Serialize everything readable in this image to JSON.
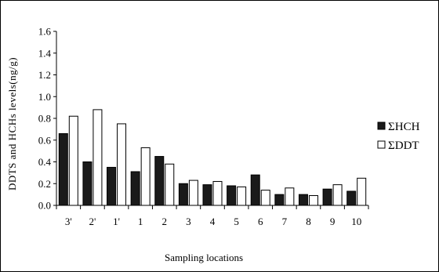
{
  "chart_data": {
    "type": "bar",
    "title": "",
    "xlabel": "Sampling locations",
    "ylabel": "DDTS and HCHs levels(ng/g)",
    "categories": [
      "3'",
      "2'",
      "1'",
      "1",
      "2",
      "3",
      "4",
      "5",
      "6",
      "7",
      "8",
      "9",
      "10"
    ],
    "ylim": [
      0,
      1.6
    ],
    "yticks": [
      "0.0",
      "0.2",
      "0.4",
      "0.6",
      "0.8",
      "1.0",
      "1.2",
      "1.4",
      "1.6"
    ],
    "grid": false,
    "legend_position": "right",
    "series": [
      {
        "name": "ΣHCH",
        "color": "#1a1a1a",
        "values": [
          0.66,
          0.4,
          0.35,
          0.31,
          0.45,
          0.2,
          0.19,
          0.18,
          0.28,
          0.1,
          0.1,
          0.15,
          0.13
        ]
      },
      {
        "name": "ΣDDT",
        "color": "#ffffff",
        "values": [
          0.82,
          0.88,
          0.75,
          0.53,
          0.38,
          0.23,
          0.22,
          0.17,
          0.14,
          0.16,
          0.09,
          0.19,
          0.25
        ]
      }
    ]
  }
}
